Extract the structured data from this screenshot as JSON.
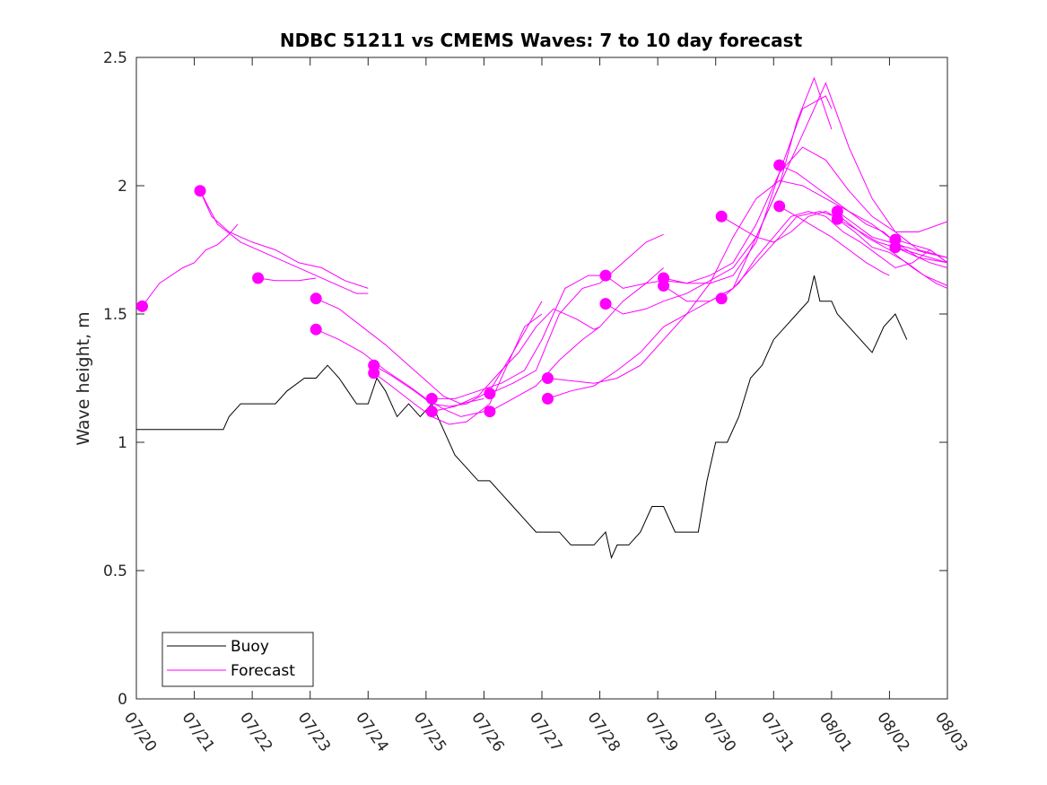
{
  "chart_data": {
    "type": "line",
    "title": "NDBC 51211 vs CMEMS Waves: 7 to 10 day forecast",
    "xlabel": "",
    "ylabel": "Wave height, m",
    "x_range": [
      "07/20",
      "08/03"
    ],
    "x_tick_labels": [
      "07/20",
      "07/21",
      "07/22",
      "07/23",
      "07/24",
      "07/25",
      "07/26",
      "07/27",
      "07/28",
      "07/29",
      "07/30",
      "07/31",
      "08/01",
      "08/02",
      "08/03"
    ],
    "ylim": [
      0,
      2.5
    ],
    "y_ticks": [
      0,
      0.5,
      1,
      1.5,
      2,
      2.5
    ],
    "y_tick_labels": [
      "0",
      "0.5",
      "1",
      "1.5",
      "2",
      "2.5"
    ],
    "grid": false,
    "legend_position": "bottom-left",
    "colors": {
      "buoy": "#000000",
      "forecast": "#ff00ff"
    },
    "series": [
      {
        "name": "Buoy",
        "x_days": [
          0,
          0.3,
          0.6,
          0.9,
          1.2,
          1.5,
          1.6,
          1.8,
          2.1,
          2.4,
          2.6,
          2.9,
          3.1,
          3.3,
          3.5,
          3.8,
          4.0,
          4.15,
          4.3,
          4.5,
          4.7,
          4.9,
          5.1,
          5.3,
          5.5,
          5.7,
          5.9,
          6.1,
          6.3,
          6.5,
          6.7,
          6.9,
          7.1,
          7.3,
          7.5,
          7.7,
          7.9,
          8.1,
          8.2,
          8.3,
          8.5,
          8.7,
          8.9,
          9.1,
          9.3,
          9.5,
          9.7,
          9.85,
          10.0,
          10.2,
          10.4,
          10.6,
          10.8,
          11.0,
          11.2,
          11.4,
          11.6,
          11.7,
          11.8,
          12.0,
          12.1,
          12.3,
          12.5,
          12.7,
          12.9,
          13.1,
          13.3
        ],
        "values": [
          1.05,
          1.05,
          1.05,
          1.05,
          1.05,
          1.05,
          1.1,
          1.15,
          1.15,
          1.15,
          1.2,
          1.25,
          1.25,
          1.3,
          1.25,
          1.15,
          1.15,
          1.25,
          1.2,
          1.1,
          1.15,
          1.1,
          1.15,
          1.05,
          0.95,
          0.9,
          0.85,
          0.85,
          0.8,
          0.75,
          0.7,
          0.65,
          0.65,
          0.65,
          0.6,
          0.6,
          0.6,
          0.65,
          0.55,
          0.6,
          0.6,
          0.65,
          0.75,
          0.75,
          0.65,
          0.65,
          0.65,
          0.85,
          1.0,
          1.0,
          1.1,
          1.25,
          1.3,
          1.4,
          1.45,
          1.5,
          1.55,
          1.65,
          1.55,
          1.55,
          1.5,
          1.45,
          1.4,
          1.35,
          1.45,
          1.5,
          1.4
        ]
      },
      {
        "name": "Forecast",
        "segments": [
          {
            "x_days": [
              0.1,
              0.4,
              0.8,
              1.0,
              1.2,
              1.4,
              1.6,
              1.75
            ],
            "values": [
              1.53,
              1.62,
              1.68,
              1.7,
              1.75,
              1.77,
              1.81,
              1.85
            ]
          },
          {
            "x_days": [
              1.1,
              1.3,
              1.6,
              2.0,
              2.4,
              2.8,
              3.2,
              3.6,
              4.0
            ],
            "values": [
              1.98,
              1.88,
              1.82,
              1.78,
              1.75,
              1.7,
              1.68,
              1.63,
              1.6
            ]
          },
          {
            "x_days": [
              1.1,
              1.4,
              1.8,
              2.2,
              2.6,
              3.0,
              3.4,
              3.8,
              4.0
            ],
            "values": [
              1.98,
              1.85,
              1.78,
              1.74,
              1.7,
              1.66,
              1.62,
              1.58,
              1.58
            ]
          },
          {
            "x_days": [
              2.1,
              2.4,
              2.8,
              3.1
            ],
            "values": [
              1.64,
              1.63,
              1.63,
              1.64
            ]
          },
          {
            "x_days": [
              3.1,
              3.5,
              3.9,
              4.3,
              4.7,
              5.0,
              5.3,
              5.6,
              6.0
            ],
            "values": [
              1.56,
              1.52,
              1.45,
              1.38,
              1.3,
              1.24,
              1.18,
              1.15,
              1.17
            ]
          },
          {
            "x_days": [
              3.1,
              3.5,
              3.9,
              4.3,
              4.7,
              5.0,
              5.3,
              5.6,
              6.0
            ],
            "values": [
              1.44,
              1.4,
              1.35,
              1.28,
              1.22,
              1.17,
              1.13,
              1.1,
              1.12
            ]
          },
          {
            "x_days": [
              4.1,
              4.4,
              4.8,
              5.1,
              5.4,
              5.7,
              6.1,
              6.5,
              7.0
            ],
            "values": [
              1.3,
              1.26,
              1.2,
              1.15,
              1.14,
              1.15,
              1.2,
              1.35,
              1.55
            ]
          },
          {
            "x_days": [
              4.1,
              4.4,
              4.8,
              5.1,
              5.4,
              5.7,
              6.1,
              6.4,
              6.7,
              7.0
            ],
            "values": [
              1.27,
              1.22,
              1.15,
              1.1,
              1.07,
              1.08,
              1.15,
              1.3,
              1.45,
              1.5
            ]
          },
          {
            "x_days": [
              5.1,
              5.5,
              5.9,
              6.3,
              6.7,
              7.0,
              7.4,
              7.8,
              8.0
            ],
            "values": [
              1.17,
              1.17,
              1.2,
              1.23,
              1.28,
              1.4,
              1.6,
              1.65,
              1.65
            ]
          },
          {
            "x_days": [
              5.1,
              5.5,
              5.9,
              6.3,
              6.6,
              6.9,
              7.2,
              7.6,
              7.9,
              8.0
            ],
            "values": [
              1.12,
              1.14,
              1.18,
              1.28,
              1.35,
              1.45,
              1.52,
              1.48,
              1.44,
              1.45
            ]
          },
          {
            "x_days": [
              6.1,
              6.5,
              6.9,
              7.3,
              7.7,
              8.0,
              8.4,
              8.8,
              9.1
            ],
            "values": [
              1.19,
              1.23,
              1.28,
              1.5,
              1.6,
              1.62,
              1.7,
              1.78,
              1.81
            ]
          },
          {
            "x_days": [
              6.1,
              6.5,
              6.9,
              7.3,
              7.7,
              8.0,
              8.4,
              8.8,
              9.1
            ],
            "values": [
              1.12,
              1.17,
              1.22,
              1.32,
              1.4,
              1.45,
              1.55,
              1.62,
              1.68
            ]
          },
          {
            "x_days": [
              7.1,
              7.5,
              7.9,
              8.3,
              8.7,
              9.1,
              9.5,
              9.9,
              10.3,
              10.7,
              11.1,
              11.5,
              11.9,
              12.3,
              12.7,
              13.1,
              13.5,
              14.0
            ],
            "values": [
              1.25,
              1.24,
              1.23,
              1.25,
              1.3,
              1.4,
              1.5,
              1.62,
              1.8,
              1.95,
              2.02,
              2.0,
              1.95,
              1.9,
              1.85,
              1.78,
              1.72,
              1.7
            ]
          },
          {
            "x_days": [
              7.1,
              7.5,
              7.9,
              8.3,
              8.7,
              9.1,
              9.5,
              9.9,
              10.3,
              10.7,
              11.1,
              11.4,
              11.8,
              12.2,
              12.6,
              13.0,
              13.4,
              13.8,
              14.0
            ],
            "values": [
              1.17,
              1.2,
              1.22,
              1.28,
              1.35,
              1.45,
              1.5,
              1.55,
              1.6,
              1.7,
              1.8,
              1.88,
              1.9,
              1.87,
              1.8,
              1.75,
              1.68,
              1.62,
              1.6
            ]
          },
          {
            "x_days": [
              8.1,
              8.4,
              8.8,
              9.1,
              9.5,
              9.9,
              10.3,
              10.7,
              11.1,
              11.5,
              11.9,
              12.3,
              12.7,
              13.1,
              13.5,
              14.0
            ],
            "values": [
              1.65,
              1.6,
              1.62,
              1.63,
              1.62,
              1.65,
              1.7,
              1.85,
              2.05,
              2.15,
              2.1,
              1.98,
              1.88,
              1.82,
              1.82,
              1.86
            ]
          },
          {
            "x_days": [
              8.1,
              8.4,
              8.8,
              9.1,
              9.5,
              9.9,
              10.3,
              10.7,
              11.1,
              11.5,
              11.9,
              12.3,
              12.7,
              13.1,
              13.5,
              14.0
            ],
            "values": [
              1.54,
              1.5,
              1.52,
              1.55,
              1.58,
              1.63,
              1.68,
              1.8,
              2.0,
              2.2,
              2.4,
              2.15,
              1.95,
              1.82,
              1.75,
              1.72
            ]
          },
          {
            "x_days": [
              9.1,
              9.5,
              9.9,
              10.3,
              10.7,
              11.1,
              11.5,
              11.9,
              12.0
            ],
            "values": [
              1.64,
              1.62,
              1.62,
              1.65,
              1.78,
              2.05,
              2.3,
              2.35,
              2.3
            ]
          },
          {
            "x_days": [
              9.1,
              9.5,
              9.9,
              10.3,
              10.7,
              11.1,
              11.4,
              11.7,
              12.0
            ],
            "values": [
              1.61,
              1.55,
              1.55,
              1.6,
              1.8,
              2.0,
              2.25,
              2.42,
              2.22
            ]
          },
          {
            "x_days": [
              10.1,
              10.4,
              10.7,
              11.0,
              11.3,
              11.6,
              11.9,
              12.2,
              12.5,
              12.8,
              13.1,
              13.4,
              13.7,
              14.0
            ],
            "values": [
              1.88,
              1.84,
              1.8,
              1.78,
              1.82,
              1.88,
              1.9,
              1.86,
              1.82,
              1.78,
              1.76,
              1.74,
              1.72,
              1.7
            ]
          },
          {
            "x_days": [
              10.1,
              10.4,
              10.7,
              11.0,
              11.3,
              11.6,
              11.9,
              12.2,
              12.5,
              12.8,
              13.1,
              13.4,
              13.7,
              14.0
            ],
            "values": [
              1.56,
              1.62,
              1.72,
              1.8,
              1.88,
              1.9,
              1.88,
              1.82,
              1.78,
              1.73,
              1.68,
              1.7,
              1.75,
              1.7
            ]
          },
          {
            "x_days": [
              11.1,
              11.4,
              11.7,
              12.0,
              12.3,
              12.6,
              12.9,
              13.0
            ],
            "values": [
              2.08,
              2.05,
              2.0,
              1.95,
              1.9,
              1.85,
              1.82,
              1.8
            ]
          },
          {
            "x_days": [
              11.1,
              11.4,
              11.7,
              12.0,
              12.3,
              12.6,
              12.9,
              13.0
            ],
            "values": [
              1.92,
              1.88,
              1.84,
              1.8,
              1.75,
              1.7,
              1.66,
              1.65
            ]
          },
          {
            "x_days": [
              12.1,
              12.4,
              12.7,
              13.0,
              13.3,
              13.6,
              14.0
            ],
            "values": [
              1.9,
              1.85,
              1.8,
              1.78,
              1.76,
              1.74,
              1.72
            ]
          },
          {
            "x_days": [
              12.1,
              12.4,
              12.7,
              13.0,
              13.3,
              13.6,
              14.0
            ],
            "values": [
              1.87,
              1.82,
              1.76,
              1.74,
              1.7,
              1.65,
              1.61
            ]
          },
          {
            "x_days": [
              13.1,
              13.4,
              13.7,
              14.0
            ],
            "values": [
              1.79,
              1.77,
              1.75,
              1.7
            ]
          },
          {
            "x_days": [
              13.1,
              13.4,
              13.7,
              14.0
            ],
            "values": [
              1.76,
              1.73,
              1.7,
              1.68
            ]
          }
        ],
        "start_markers": [
          {
            "x_day": 0.1,
            "value": 1.53
          },
          {
            "x_day": 1.1,
            "value": 1.98
          },
          {
            "x_day": 2.1,
            "value": 1.64
          },
          {
            "x_day": 3.1,
            "value": 1.56
          },
          {
            "x_day": 3.1,
            "value": 1.44
          },
          {
            "x_day": 4.1,
            "value": 1.3
          },
          {
            "x_day": 4.1,
            "value": 1.27
          },
          {
            "x_day": 5.1,
            "value": 1.17
          },
          {
            "x_day": 5.1,
            "value": 1.12
          },
          {
            "x_day": 6.1,
            "value": 1.19
          },
          {
            "x_day": 6.1,
            "value": 1.12
          },
          {
            "x_day": 7.1,
            "value": 1.25
          },
          {
            "x_day": 7.1,
            "value": 1.17
          },
          {
            "x_day": 8.1,
            "value": 1.65
          },
          {
            "x_day": 8.1,
            "value": 1.54
          },
          {
            "x_day": 9.1,
            "value": 1.64
          },
          {
            "x_day": 9.1,
            "value": 1.61
          },
          {
            "x_day": 10.1,
            "value": 1.88
          },
          {
            "x_day": 10.1,
            "value": 1.56
          },
          {
            "x_day": 11.1,
            "value": 2.08
          },
          {
            "x_day": 11.1,
            "value": 1.92
          },
          {
            "x_day": 12.1,
            "value": 1.9
          },
          {
            "x_day": 12.1,
            "value": 1.87
          },
          {
            "x_day": 13.1,
            "value": 1.79
          },
          {
            "x_day": 13.1,
            "value": 1.76
          }
        ]
      }
    ],
    "legend": [
      {
        "label": "Buoy",
        "color": "#000000"
      },
      {
        "label": "Forecast",
        "color": "#ff00ff"
      }
    ]
  }
}
